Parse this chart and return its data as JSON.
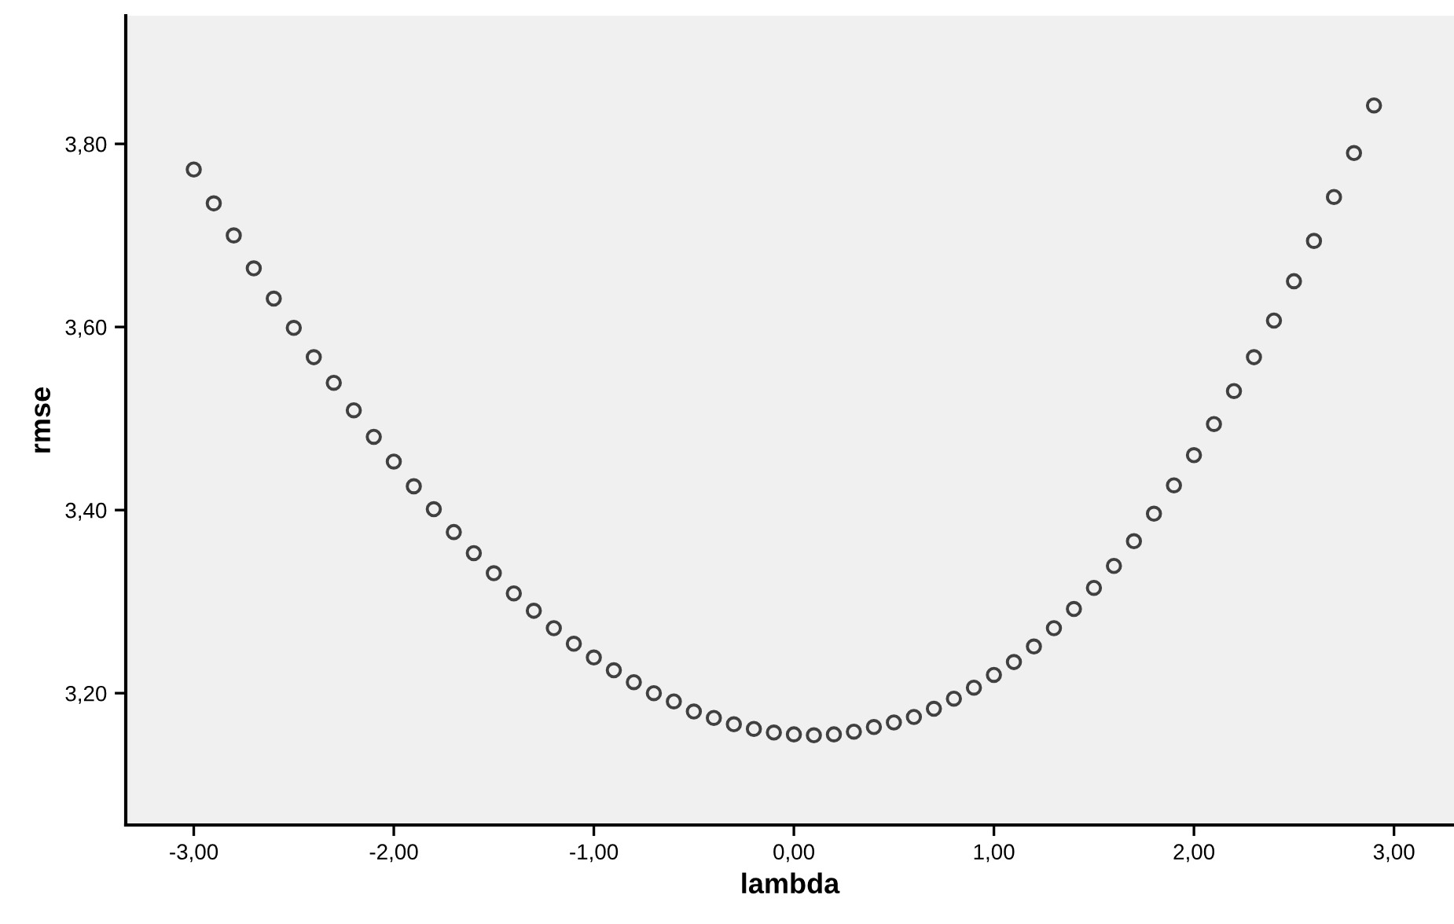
{
  "chart_data": {
    "type": "scatter",
    "xlabel": "lambda",
    "ylabel": "rmse",
    "marker": "circle",
    "grid": false,
    "x": [
      -3.0,
      -2.9,
      -2.8,
      -2.7,
      -2.6,
      -2.5,
      -2.4,
      -2.3,
      -2.2,
      -2.1,
      -2.0,
      -1.9,
      -1.8,
      -1.7,
      -1.6,
      -1.5,
      -1.4,
      -1.3,
      -1.2,
      -1.1,
      -1.0,
      -0.9,
      -0.8,
      -0.7,
      -0.6,
      -0.5,
      -0.4,
      -0.3,
      -0.2,
      -0.1,
      0.0,
      0.1,
      0.2,
      0.3,
      0.4,
      0.5,
      0.6,
      0.7,
      0.8,
      0.9,
      1.0,
      1.1,
      1.2,
      1.3,
      1.4,
      1.5,
      1.6,
      1.7,
      1.8,
      1.9,
      2.0,
      2.1,
      2.2,
      2.3,
      2.4,
      2.5,
      2.6,
      2.7,
      2.8,
      2.9
    ],
    "series": [
      {
        "color": "#404040",
        "values": [
          3.772,
          3.735,
          3.7,
          3.664,
          3.631,
          3.599,
          3.567,
          3.539,
          3.509,
          3.48,
          3.453,
          3.426,
          3.401,
          3.376,
          3.353,
          3.331,
          3.309,
          3.29,
          3.271,
          3.254,
          3.239,
          3.225,
          3.212,
          3.2,
          3.191,
          3.18,
          3.173,
          3.166,
          3.161,
          3.157,
          3.155,
          3.154,
          3.155,
          3.158,
          3.163,
          3.168,
          3.174,
          3.183,
          3.194,
          3.206,
          3.22,
          3.234,
          3.251,
          3.271,
          3.292,
          3.315,
          3.339,
          3.366,
          3.396,
          3.427,
          3.46,
          3.494,
          3.53,
          3.567,
          3.607,
          3.65,
          3.694,
          3.742,
          3.79,
          3.842
        ]
      }
    ],
    "xlim": [
      -3.34,
      3.3
    ],
    "ylim": [
      3.056,
      3.94
    ],
    "xticks": [
      {
        "value": -3,
        "label": "-3,00"
      },
      {
        "value": -2,
        "label": "-2,00"
      },
      {
        "value": -1,
        "label": "-1,00"
      },
      {
        "value": 0,
        "label": "0,00"
      },
      {
        "value": 1,
        "label": "1,00"
      },
      {
        "value": 2,
        "label": "2,00"
      },
      {
        "value": 3,
        "label": "3,00"
      }
    ],
    "yticks": [
      {
        "value": 3.2,
        "label": "3,20"
      },
      {
        "value": 3.4,
        "label": "3,40"
      },
      {
        "value": 3.6,
        "label": "3,60"
      },
      {
        "value": 3.8,
        "label": "3,80"
      }
    ]
  }
}
